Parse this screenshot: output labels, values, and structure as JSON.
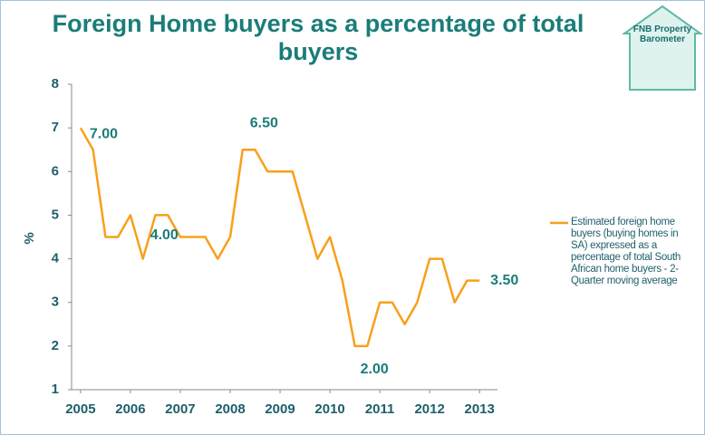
{
  "chart_data": {
    "type": "line",
    "title": "Foreign Home buyers as a percentage of total buyers",
    "logo": "FNB Property Barometer",
    "ylabel": "%",
    "x": [
      2005,
      2005.25,
      2005.5,
      2005.75,
      2006,
      2006.25,
      2006.5,
      2006.75,
      2007,
      2007.25,
      2007.5,
      2007.75,
      2008,
      2008.25,
      2008.5,
      2008.75,
      2009,
      2009.25,
      2009.5,
      2009.75,
      2010,
      2010.25,
      2010.5,
      2010.75,
      2011,
      2011.25,
      2011.5,
      2011.75,
      2012,
      2012.25,
      2012.5,
      2012.75,
      2013
    ],
    "series": [
      {
        "name": "Estimated foreign home buyers (buying homes in SA) expressed as a percentage of total South African home buyers - 2-Quarter moving average",
        "color": "#f7a01c",
        "values": [
          7,
          6.5,
          4.5,
          4.5,
          5,
          4,
          5,
          5,
          4.5,
          4.5,
          4.5,
          4,
          4.5,
          6.5,
          6.5,
          6,
          6,
          6,
          5,
          4,
          4.5,
          3.5,
          2,
          2,
          3,
          3,
          2.5,
          3,
          4,
          4,
          3,
          3.5,
          3.5
        ],
        "value_labels": [
          "7.00",
          null,
          null,
          null,
          null,
          "4.00",
          null,
          null,
          null,
          null,
          null,
          null,
          null,
          "6.50",
          null,
          null,
          null,
          null,
          null,
          null,
          null,
          null,
          "2.00",
          null,
          null,
          null,
          null,
          null,
          null,
          null,
          null,
          null,
          "3.50"
        ]
      }
    ],
    "xlim": [
      2004.82,
      2013.36
    ],
    "xticks": [
      2005,
      2006,
      2007,
      2008,
      2009,
      2010,
      2011,
      2012,
      2013
    ],
    "ylim": [
      1,
      8
    ],
    "yticks": [
      1,
      2,
      3,
      4,
      5,
      6,
      7,
      8
    ],
    "grid": false,
    "legend": "right"
  }
}
